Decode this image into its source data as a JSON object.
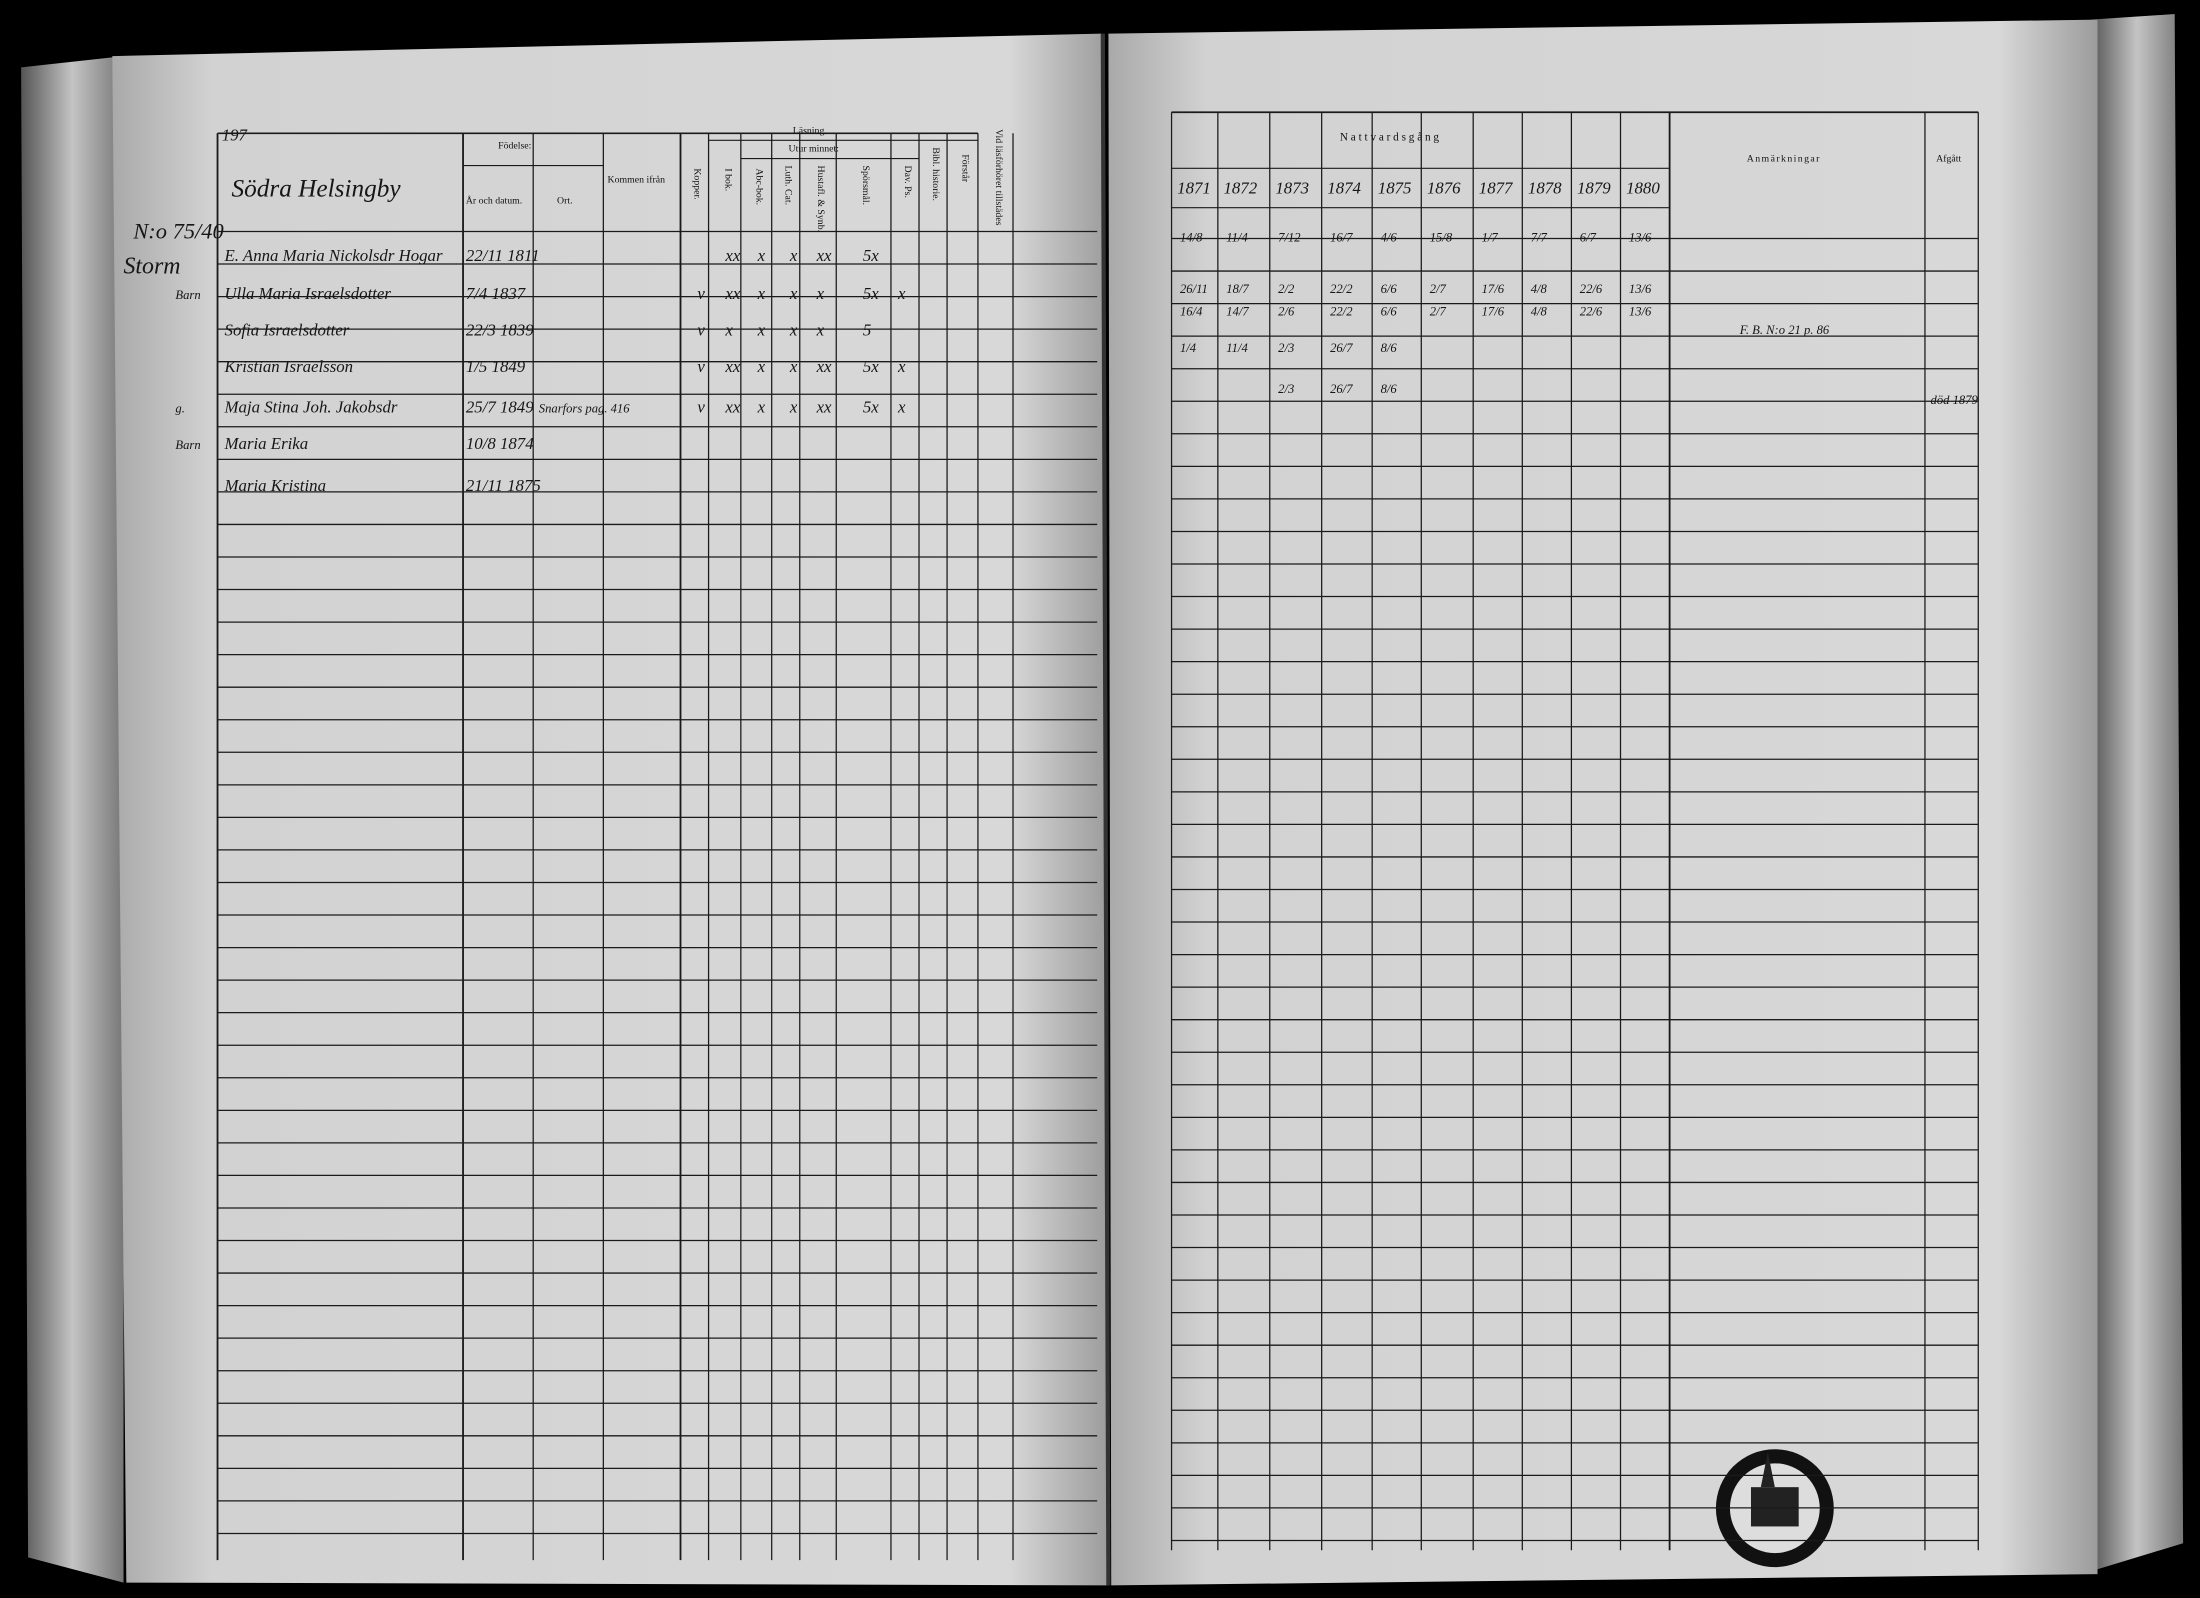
{
  "left_page": {
    "page_number": "197",
    "place": "Södra Helsingby",
    "household_number": "N:o 75/40",
    "surname": "Storm",
    "headers": {
      "birth": "Födelse:",
      "birth_date": "År och datum.",
      "birth_place": "Ort.",
      "came_from": "Kommen ifrån",
      "smallpox": "Kopper.",
      "reading": "Läsning.",
      "by_heart": "Utur minnet:",
      "in_book": "I bok.",
      "abc": "Abc-bok.",
      "catechism": "Luth. Cat.",
      "house_table": "Hustafl. & Synb.",
      "questions": "Spörsmål.",
      "psalms": "Dav. Ps.",
      "bible_history": "Bibl. historie.",
      "understands": "Förstår",
      "attended": "Vid läsförhöret tillstädes"
    },
    "rows": [
      {
        "role": "",
        "name": "E. Anna Maria Nickolsdr Hogar",
        "birth": "22/11 1811",
        "came_from": "",
        "reading": [
          "",
          "xx",
          "x",
          "x",
          "xx",
          "5x",
          ""
        ]
      },
      {
        "role": "Barn",
        "name": "Ulla Maria Israelsdotter",
        "birth": "7/4 1837",
        "came_from": "",
        "reading": [
          "v",
          "xx",
          "x",
          "x",
          "x",
          "5x",
          "x"
        ]
      },
      {
        "role": "",
        "name": "Sofia Israelsdotter",
        "birth": "22/3 1839",
        "came_from": "",
        "reading": [
          "v",
          "x",
          "x",
          "x",
          "x",
          "5",
          ""
        ]
      },
      {
        "role": "",
        "name": "Kristian Israelsson",
        "birth": "1/5 1849",
        "came_from": "",
        "reading": [
          "v",
          "xx",
          "x",
          "x",
          "xx",
          "5x",
          "x"
        ]
      },
      {
        "role": "g.",
        "name": "Maja Stina Joh. Jakobsdr",
        "birth": "25/7 1849",
        "came_from": "Snarfors pag. 416",
        "reading": [
          "v",
          "xx",
          "x",
          "x",
          "xx",
          "5x",
          "x"
        ]
      },
      {
        "role": "Barn",
        "name": "Maria Erika",
        "birth": "10/8 1874",
        "came_from": "",
        "reading": [
          "",
          "",
          "",
          "",
          "",
          "",
          ""
        ]
      },
      {
        "role": "",
        "name": "Maria Kristina",
        "birth": "21/11 1875",
        "came_from": "",
        "reading": [
          "",
          "",
          "",
          "",
          "",
          "",
          ""
        ]
      }
    ]
  },
  "right_page": {
    "header": "Nattvardsgång",
    "years": [
      "1871",
      "1872",
      "1873",
      "1874",
      "1875",
      "1876",
      "1877",
      "1878",
      "1879",
      "1880"
    ],
    "remarks_header": "Anmärkningar",
    "departed_header": "Afgått",
    "communion": [
      [
        "14/8",
        "11/4",
        "7/12",
        "16/7",
        "4/6",
        "15/8",
        "1/7",
        "7/7",
        "6/7",
        "13/6"
      ],
      [
        "26/11",
        "18/7",
        "2/2",
        "22/2",
        "6/6",
        "2/7",
        "17/6",
        "4/8",
        "22/6",
        "13/6"
      ],
      [
        "16/4",
        "14/7",
        "2/6",
        "22/2",
        "6/6",
        "2/7",
        "17/6",
        "4/8",
        "22/6",
        "13/6"
      ],
      [
        "1/4",
        "11/4",
        "2/3",
        "26/7",
        "8/6",
        "",
        "",
        "",
        "",
        ""
      ],
      [
        "",
        "",
        "2/3",
        "26/7",
        "8/6",
        "",
        "",
        "",
        "",
        ""
      ]
    ],
    "remark": "F. B. N:o 21 p. 86",
    "departed": "död 1879"
  }
}
